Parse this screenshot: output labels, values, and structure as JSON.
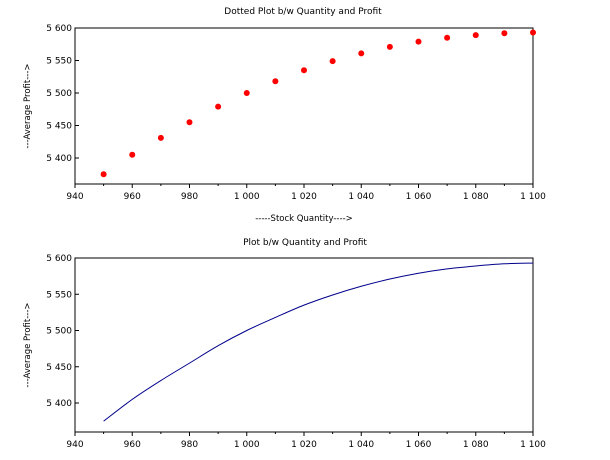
{
  "colors": {
    "background": "#ffffff",
    "axes": "#000000",
    "dots": "#ff0000",
    "line": "#00008b"
  },
  "chart_data": [
    {
      "type": "scatter",
      "title": "Dotted Plot b/w Quantity and Profit",
      "xlabel": "-----Stock Quantity---->",
      "ylabel": "---Average Profit--->",
      "xlim": [
        940,
        1100
      ],
      "ylim": [
        5360,
        5600
      ],
      "x_ticks": [
        "940",
        "960",
        "980",
        "1 000",
        "1 020",
        "1 040",
        "1 060",
        "1 080",
        "1 100"
      ],
      "y_ticks": [
        "5 400",
        "5 450",
        "5 500",
        "5 550",
        "5 600"
      ],
      "grid": false,
      "series": [
        {
          "color": "#ff0000",
          "x": [
            950,
            960,
            970,
            980,
            990,
            1000,
            1010,
            1020,
            1030,
            1040,
            1050,
            1060,
            1070,
            1080,
            1090,
            1100
          ],
          "y": [
            5375,
            5405,
            5431,
            5455,
            5479,
            5500,
            5518,
            5535,
            5549,
            5561,
            5571,
            5579,
            5585,
            5589,
            5592,
            5593
          ]
        }
      ]
    },
    {
      "type": "line",
      "title": "Plot b/w Quantity and Profit",
      "xlabel": "",
      "ylabel": "---Average Profit--->",
      "xlim": [
        940,
        1100
      ],
      "ylim": [
        5360,
        5600
      ],
      "x_ticks": [
        "940",
        "960",
        "980",
        "1 000",
        "1 020",
        "1 040",
        "1 060",
        "1 080",
        "1 100"
      ],
      "y_ticks": [
        "5 400",
        "5 450",
        "5 500",
        "5 550",
        "5 600"
      ],
      "grid": false,
      "series": [
        {
          "color": "#00008b",
          "x": [
            950,
            960,
            970,
            980,
            990,
            1000,
            1010,
            1020,
            1030,
            1040,
            1050,
            1060,
            1070,
            1080,
            1090,
            1100
          ],
          "y": [
            5375,
            5405,
            5431,
            5455,
            5479,
            5500,
            5518,
            5535,
            5549,
            5561,
            5571,
            5579,
            5585,
            5589,
            5592,
            5593
          ]
        }
      ]
    }
  ]
}
